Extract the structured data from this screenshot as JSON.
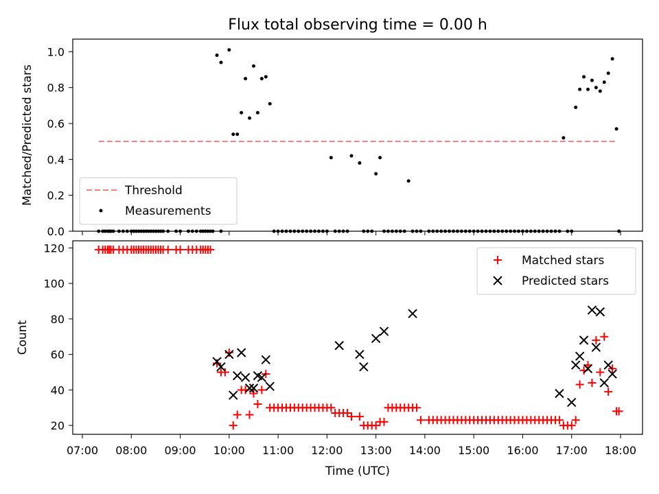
{
  "chart_data": [
    {
      "type": "scatter",
      "title": "Flux total observing time = 0.00 h",
      "xlabel": "",
      "ylabel": "Matched/Predicted stars",
      "xlim": [
        "07:00",
        "18:30"
      ],
      "ylim": [
        0.0,
        1.07
      ],
      "yticks": [
        0.0,
        0.2,
        0.4,
        0.6,
        0.8,
        1.0
      ],
      "ytick_labels": [
        "0.0",
        "0.2",
        "0.4",
        "0.6",
        "0.8",
        "1.0"
      ],
      "legend_position": "lower-left",
      "series": [
        {
          "name": "Threshold",
          "kind": "dashed-line",
          "color": "#f08080",
          "x": [
            "07:20",
            "17:55"
          ],
          "y": [
            0.5,
            0.5
          ]
        },
        {
          "name": "Measurements",
          "kind": "dot",
          "color": "#000000",
          "x": [
            "07:20",
            "07:25",
            "07:28",
            "07:31",
            "07:33",
            "07:35",
            "07:38",
            "07:45",
            "07:50",
            "07:55",
            "08:00",
            "08:03",
            "08:06",
            "08:09",
            "08:12",
            "08:15",
            "08:18",
            "08:21",
            "08:24",
            "08:27",
            "08:30",
            "08:33",
            "08:36",
            "08:39",
            "08:45",
            "08:55",
            "09:00",
            "09:10",
            "09:15",
            "09:20",
            "09:25",
            "09:28",
            "09:31",
            "09:34",
            "09:37",
            "09:40",
            "09:50",
            "09:45",
            "09:50",
            "10:00",
            "10:05",
            "10:10",
            "10:15",
            "10:20",
            "10:25",
            "10:30",
            "10:35",
            "10:40",
            "10:45",
            "10:50",
            "10:55",
            "11:00",
            "11:05",
            "11:10",
            "11:15",
            "11:20",
            "11:25",
            "11:30",
            "11:35",
            "11:40",
            "11:45",
            "11:50",
            "11:55",
            "12:00",
            "12:05",
            "12:10",
            "12:15",
            "12:20",
            "12:25",
            "12:30",
            "12:40",
            "12:45",
            "12:50",
            "12:55",
            "13:00",
            "13:05",
            "13:10",
            "13:15",
            "13:20",
            "13:25",
            "13:30",
            "13:35",
            "13:40",
            "13:45",
            "13:50",
            "13:55",
            "14:05",
            "14:10",
            "14:15",
            "14:20",
            "14:25",
            "14:30",
            "14:35",
            "14:40",
            "14:45",
            "14:50",
            "14:55",
            "15:00",
            "15:05",
            "15:10",
            "15:15",
            "15:20",
            "15:25",
            "15:30",
            "15:35",
            "15:40",
            "15:45",
            "15:50",
            "15:55",
            "16:00",
            "16:05",
            "16:10",
            "16:15",
            "16:20",
            "16:25",
            "16:30",
            "16:35",
            "16:40",
            "16:45",
            "16:50",
            "16:55",
            "17:00",
            "17:05",
            "17:10",
            "17:15",
            "17:20",
            "17:25",
            "17:30",
            "17:35",
            "17:40",
            "17:45",
            "17:50",
            "17:55",
            "17:58"
          ],
          "y": [
            0.0,
            0.0,
            0.0,
            0.0,
            0.0,
            0.0,
            0.0,
            0.0,
            0.0,
            0.0,
            0.0,
            0.0,
            0.0,
            0.0,
            0.0,
            0.0,
            0.0,
            0.0,
            0.0,
            0.0,
            0.0,
            0.0,
            0.0,
            0.0,
            0.0,
            0.0,
            0.0,
            0.0,
            0.0,
            0.0,
            0.0,
            0.0,
            0.0,
            0.0,
            0.0,
            0.0,
            0.0,
            0.98,
            0.94,
            1.01,
            0.54,
            0.54,
            0.66,
            0.85,
            0.63,
            0.92,
            0.66,
            0.85,
            0.86,
            0.71,
            0.0,
            0.0,
            0.0,
            0.0,
            0.0,
            0.0,
            0.0,
            0.0,
            0.0,
            0.0,
            0.0,
            0.0,
            0.0,
            0.0,
            0.41,
            0.0,
            0.0,
            0.0,
            0.0,
            0.42,
            0.38,
            0.0,
            0.0,
            0.0,
            0.32,
            0.41,
            0.0,
            0.0,
            0.0,
            0.0,
            0.0,
            0.0,
            0.28,
            0.0,
            0.0,
            0.0,
            0.0,
            0.0,
            0.0,
            0.0,
            0.0,
            0.0,
            0.0,
            0.0,
            0.0,
            0.0,
            0.0,
            0.0,
            0.0,
            0.0,
            0.0,
            0.0,
            0.0,
            0.0,
            0.0,
            0.0,
            0.0,
            0.0,
            0.0,
            0.0,
            0.0,
            0.0,
            0.0,
            0.0,
            0.0,
            0.0,
            0.0,
            0.0,
            0.0,
            0.52,
            0.0,
            0.0,
            0.69,
            0.79,
            0.86,
            0.79,
            0.84,
            0.8,
            0.78,
            0.83,
            0.88,
            0.96,
            0.57,
            0.0
          ]
        }
      ]
    },
    {
      "type": "scatter",
      "title": "",
      "xlabel": "Time (UTC)",
      "ylabel": "Count",
      "xlim": [
        "07:00",
        "18:30"
      ],
      "ylim": [
        15,
        124
      ],
      "xticks": [
        "07:00",
        "08:00",
        "09:00",
        "10:00",
        "11:00",
        "12:00",
        "13:00",
        "14:00",
        "15:00",
        "16:00",
        "17:00",
        "18:00"
      ],
      "yticks": [
        20,
        40,
        60,
        80,
        100,
        120
      ],
      "ytick_labels": [
        "20",
        "40",
        "60",
        "80",
        "100",
        "120"
      ],
      "legend_position": "upper-right",
      "series": [
        {
          "name": "Matched stars",
          "marker": "plus",
          "color": "#ff0000",
          "x": [
            "07:20",
            "07:25",
            "07:28",
            "07:31",
            "07:33",
            "07:35",
            "07:38",
            "07:45",
            "07:50",
            "07:55",
            "08:00",
            "08:03",
            "08:06",
            "08:09",
            "08:12",
            "08:15",
            "08:18",
            "08:21",
            "08:24",
            "08:27",
            "08:30",
            "08:33",
            "08:36",
            "08:39",
            "08:45",
            "08:55",
            "09:00",
            "09:10",
            "09:15",
            "09:20",
            "09:25",
            "09:28",
            "09:31",
            "09:34",
            "09:37",
            "09:45",
            "09:50",
            "09:55",
            "10:00",
            "10:05",
            "10:10",
            "10:15",
            "10:20",
            "10:25",
            "10:30",
            "10:35",
            "10:40",
            "10:45",
            "10:50",
            "10:55",
            "11:00",
            "11:05",
            "11:10",
            "11:15",
            "11:20",
            "11:25",
            "11:30",
            "11:35",
            "11:40",
            "11:45",
            "11:50",
            "11:55",
            "12:00",
            "12:05",
            "12:10",
            "12:15",
            "12:20",
            "12:25",
            "12:30",
            "12:40",
            "12:45",
            "12:50",
            "12:55",
            "13:00",
            "13:05",
            "13:10",
            "13:15",
            "13:20",
            "13:25",
            "13:30",
            "13:35",
            "13:40",
            "13:45",
            "13:50",
            "13:55",
            "14:05",
            "14:10",
            "14:15",
            "14:20",
            "14:25",
            "14:30",
            "14:35",
            "14:40",
            "14:45",
            "14:50",
            "14:55",
            "15:00",
            "15:05",
            "15:10",
            "15:15",
            "15:20",
            "15:25",
            "15:30",
            "15:35",
            "15:40",
            "15:45",
            "15:50",
            "15:55",
            "16:00",
            "16:05",
            "16:10",
            "16:15",
            "16:20",
            "16:25",
            "16:30",
            "16:35",
            "16:40",
            "16:45",
            "16:50",
            "16:55",
            "17:00",
            "17:05",
            "17:10",
            "17:15",
            "17:20",
            "17:25",
            "17:30",
            "17:35",
            "17:40",
            "17:45",
            "17:50",
            "17:55",
            "17:58"
          ],
          "y": [
            119,
            119,
            119,
            119,
            119,
            119,
            119,
            119,
            119,
            119,
            119,
            119,
            119,
            119,
            119,
            119,
            119,
            119,
            119,
            119,
            119,
            119,
            119,
            119,
            119,
            119,
            119,
            119,
            119,
            119,
            119,
            119,
            119,
            119,
            119,
            55,
            50,
            50,
            61,
            20,
            26,
            40,
            40,
            26,
            38,
            32,
            40,
            49,
            30,
            30,
            30,
            30,
            30,
            30,
            30,
            30,
            30,
            30,
            30,
            30,
            30,
            30,
            30,
            30,
            27,
            27,
            27,
            27,
            25,
            25,
            20,
            20,
            20,
            20,
            22,
            22,
            30,
            30,
            30,
            30,
            30,
            30,
            30,
            30,
            23,
            23,
            23,
            23,
            23,
            23,
            23,
            23,
            23,
            23,
            23,
            23,
            23,
            23,
            23,
            23,
            23,
            23,
            23,
            23,
            23,
            23,
            23,
            23,
            23,
            23,
            23,
            23,
            23,
            23,
            23,
            23,
            23,
            23,
            20,
            20,
            20,
            23,
            43,
            51,
            54,
            44,
            68,
            50,
            70,
            39,
            52,
            28,
            28
          ]
        },
        {
          "name": "Predicted stars",
          "marker": "x",
          "color": "#000000",
          "x": [
            "09:45",
            "09:50",
            "10:00",
            "10:05",
            "10:10",
            "10:15",
            "10:20",
            "10:25",
            "10:30",
            "10:35",
            "10:40",
            "10:45",
            "10:50",
            "12:15",
            "12:40",
            "12:45",
            "13:00",
            "13:10",
            "13:45",
            "16:45",
            "17:00",
            "17:05",
            "17:10",
            "17:15",
            "17:20",
            "17:25",
            "17:30",
            "17:35",
            "17:40",
            "17:45",
            "17:50"
          ],
          "y": [
            56,
            53,
            60,
            37,
            48,
            61,
            47,
            41,
            41,
            48,
            47,
            57,
            42,
            65,
            60,
            53,
            69,
            73,
            83,
            38,
            33,
            54,
            59,
            68,
            52,
            85,
            64,
            84,
            44,
            54,
            49
          ]
        }
      ]
    }
  ]
}
